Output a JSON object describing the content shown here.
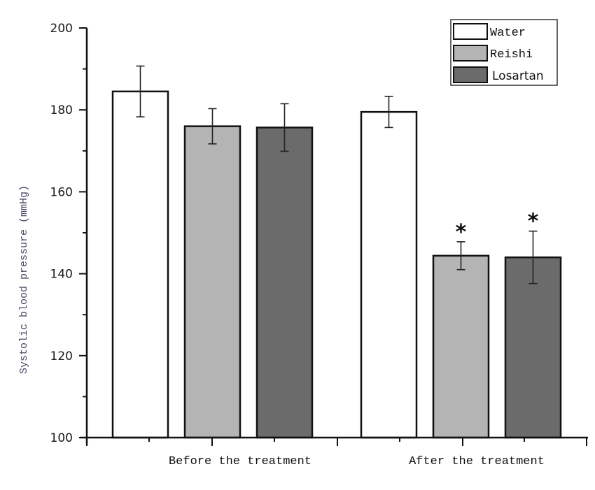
{
  "chart_data": {
    "type": "bar",
    "title": "",
    "xlabel": "",
    "ylabel": "Systolic blood pressure (mmHg)",
    "ylim": [
      100,
      200
    ],
    "yticks": [
      "100",
      "120",
      "140",
      "160",
      "180",
      "200"
    ],
    "categories": [
      "Before the treatment",
      "After the treatment"
    ],
    "series": [
      {
        "name": "Water",
        "color": "#ffffff",
        "values": [
          184.5,
          179.5
        ],
        "errors": [
          6.2,
          3.8
        ],
        "significance": [
          "",
          ""
        ]
      },
      {
        "name": "Reishi",
        "color": "#b4b4b4",
        "values": [
          176.0,
          144.4
        ],
        "errors": [
          4.3,
          3.4
        ],
        "significance": [
          "",
          "*"
        ]
      },
      {
        "name": "Losartan",
        "color": "#6b6b6b",
        "values": [
          175.7,
          144.0
        ],
        "errors": [
          5.8,
          6.4
        ],
        "significance": [
          "",
          "*"
        ]
      }
    ],
    "legend": {
      "placement": "top-right",
      "entries": [
        "Water",
        "Reishi",
        "Losartan"
      ]
    },
    "grid": false
  }
}
